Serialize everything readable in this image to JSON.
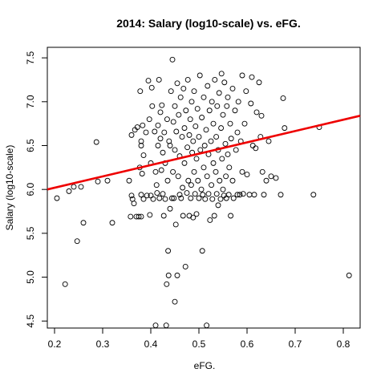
{
  "chart_data": {
    "type": "scatter",
    "title": "2014: Salary (log10-scale) vs. eFG.",
    "xlabel": "eFG.",
    "ylabel": "Salary (log10-scale)",
    "xlim": [
      0.185,
      0.835
    ],
    "ylim": [
      4.42,
      7.62
    ],
    "x_ticks": [
      "0.2",
      "0.3",
      "0.4",
      "0.5",
      "0.6",
      "0.7",
      "0.8"
    ],
    "y_ticks": [
      "4.5",
      "5.0",
      "5.5",
      "6.0",
      "6.5",
      "7.0",
      "7.5"
    ],
    "grid": false,
    "legend": "none",
    "colors": {
      "points": "#000000",
      "fit_line": "#ee0000"
    },
    "fit_line": {
      "x": [
        0.185,
        0.835
      ],
      "y": [
        6.0,
        6.84
      ]
    },
    "points": [
      [
        0.205,
        5.9
      ],
      [
        0.222,
        4.92
      ],
      [
        0.23,
        5.98
      ],
      [
        0.24,
        6.03
      ],
      [
        0.247,
        5.41
      ],
      [
        0.255,
        6.03
      ],
      [
        0.26,
        5.62
      ],
      [
        0.287,
        6.54
      ],
      [
        0.29,
        6.09
      ],
      [
        0.31,
        6.1
      ],
      [
        0.32,
        5.62
      ],
      [
        0.355,
        6.1
      ],
      [
        0.358,
        5.69
      ],
      [
        0.36,
        5.93
      ],
      [
        0.36,
        6.62
      ],
      [
        0.362,
        5.89
      ],
      [
        0.365,
        5.84
      ],
      [
        0.367,
        6.68
      ],
      [
        0.37,
        5.69
      ],
      [
        0.372,
        6.71
      ],
      [
        0.375,
        5.69
      ],
      [
        0.377,
        6.25
      ],
      [
        0.378,
        7.12
      ],
      [
        0.38,
        5.69
      ],
      [
        0.38,
        6.55
      ],
      [
        0.38,
        6.5
      ],
      [
        0.38,
        5.94
      ],
      [
        0.382,
        6.18
      ],
      [
        0.383,
        6.73
      ],
      [
        0.385,
        6.39
      ],
      [
        0.385,
        5.89
      ],
      [
        0.39,
        6.65
      ],
      [
        0.392,
        5.93
      ],
      [
        0.395,
        7.24
      ],
      [
        0.397,
        6.8
      ],
      [
        0.398,
        5.71
      ],
      [
        0.4,
        5.93
      ],
      [
        0.4,
        6.3
      ],
      [
        0.402,
        7.16
      ],
      [
        0.403,
        6.95
      ],
      [
        0.405,
        5.89
      ],
      [
        0.408,
        6.66
      ],
      [
        0.41,
        4.45
      ],
      [
        0.41,
        6.2
      ],
      [
        0.412,
        6.05
      ],
      [
        0.413,
        5.96
      ],
      [
        0.415,
        6.73
      ],
      [
        0.415,
        6.5
      ],
      [
        0.417,
        7.25
      ],
      [
        0.418,
        5.9
      ],
      [
        0.42,
        6.88
      ],
      [
        0.42,
        6.58
      ],
      [
        0.422,
        6.22
      ],
      [
        0.423,
        6.96
      ],
      [
        0.425,
        5.95
      ],
      [
        0.425,
        6.42
      ],
      [
        0.427,
        5.7
      ],
      [
        0.428,
        6.65
      ],
      [
        0.43,
        6.3
      ],
      [
        0.43,
        5.89
      ],
      [
        0.432,
        4.45
      ],
      [
        0.433,
        4.92
      ],
      [
        0.434,
        6.8
      ],
      [
        0.435,
        6.1
      ],
      [
        0.436,
        5.3
      ],
      [
        0.437,
        5.02
      ],
      [
        0.438,
        6.55
      ],
      [
        0.44,
        5.78
      ],
      [
        0.44,
        6.5
      ],
      [
        0.442,
        7.12
      ],
      [
        0.444,
        5.9
      ],
      [
        0.445,
        7.48
      ],
      [
        0.446,
        6.2
      ],
      [
        0.447,
        6.77
      ],
      [
        0.448,
        5.9
      ],
      [
        0.45,
        6.95
      ],
      [
        0.45,
        6.45
      ],
      [
        0.45,
        4.72
      ],
      [
        0.452,
        5.6
      ],
      [
        0.453,
        6.66
      ],
      [
        0.455,
        7.21
      ],
      [
        0.455,
        5.02
      ],
      [
        0.457,
        6.15
      ],
      [
        0.458,
        6.85
      ],
      [
        0.46,
        5.94
      ],
      [
        0.46,
        6.38
      ],
      [
        0.462,
        7.05
      ],
      [
        0.463,
        5.9
      ],
      [
        0.465,
        6.6
      ],
      [
        0.466,
        6.02
      ],
      [
        0.467,
        5.7
      ],
      [
        0.468,
        7.15
      ],
      [
        0.47,
        6.3
      ],
      [
        0.47,
        6.7
      ],
      [
        0.472,
        5.12
      ],
      [
        0.473,
        6.9
      ],
      [
        0.475,
        5.96
      ],
      [
        0.476,
        6.48
      ],
      [
        0.477,
        7.25
      ],
      [
        0.478,
        6.1
      ],
      [
        0.48,
        5.7
      ],
      [
        0.48,
        6.62
      ],
      [
        0.482,
        6.8
      ],
      [
        0.483,
        5.9
      ],
      [
        0.484,
        6.05
      ],
      [
        0.485,
        7.0
      ],
      [
        0.486,
        6.42
      ],
      [
        0.488,
        5.68
      ],
      [
        0.488,
        6.55
      ],
      [
        0.49,
        7.12
      ],
      [
        0.49,
        6.2
      ],
      [
        0.492,
        5.95
      ],
      [
        0.493,
        6.72
      ],
      [
        0.495,
        6.35
      ],
      [
        0.495,
        5.72
      ],
      [
        0.497,
        6.92
      ],
      [
        0.498,
        6.1
      ],
      [
        0.5,
        5.9
      ],
      [
        0.5,
        6.6
      ],
      [
        0.502,
        7.3
      ],
      [
        0.503,
        6.45
      ],
      [
        0.505,
        6.0
      ],
      [
        0.506,
        6.82
      ],
      [
        0.507,
        5.3
      ],
      [
        0.508,
        5.94
      ],
      [
        0.51,
        6.25
      ],
      [
        0.51,
        7.05
      ],
      [
        0.512,
        6.5
      ],
      [
        0.513,
        5.89
      ],
      [
        0.515,
        6.68
      ],
      [
        0.516,
        4.45
      ],
      [
        0.517,
        6.15
      ],
      [
        0.518,
        7.18
      ],
      [
        0.52,
        5.95
      ],
      [
        0.52,
        6.4
      ],
      [
        0.522,
        6.9
      ],
      [
        0.523,
        5.65
      ],
      [
        0.525,
        6.55
      ],
      [
        0.526,
        6.05
      ],
      [
        0.527,
        7.0
      ],
      [
        0.528,
        5.89
      ],
      [
        0.53,
        6.3
      ],
      [
        0.53,
        6.75
      ],
      [
        0.532,
        5.7
      ],
      [
        0.533,
        7.25
      ],
      [
        0.535,
        6.2
      ],
      [
        0.536,
        6.6
      ],
      [
        0.537,
        5.95
      ],
      [
        0.538,
        6.95
      ],
      [
        0.54,
        6.45
      ],
      [
        0.54,
        5.82
      ],
      [
        0.542,
        7.1
      ],
      [
        0.543,
        6.1
      ],
      [
        0.545,
        5.89
      ],
      [
        0.546,
        6.7
      ],
      [
        0.547,
        7.32
      ],
      [
        0.548,
        6.35
      ],
      [
        0.55,
        6.0
      ],
      [
        0.55,
        6.85
      ],
      [
        0.552,
        5.93
      ],
      [
        0.553,
        7.22
      ],
      [
        0.555,
        6.52
      ],
      [
        0.556,
        6.15
      ],
      [
        0.557,
        5.9
      ],
      [
        0.558,
        6.95
      ],
      [
        0.56,
        6.4
      ],
      [
        0.56,
        7.05
      ],
      [
        0.562,
        5.94
      ],
      [
        0.563,
        6.25
      ],
      [
        0.565,
        6.75
      ],
      [
        0.566,
        5.7
      ],
      [
        0.567,
        6.58
      ],
      [
        0.57,
        7.15
      ],
      [
        0.57,
        6.1
      ],
      [
        0.572,
        5.9
      ],
      [
        0.575,
        6.9
      ],
      [
        0.577,
        6.45
      ],
      [
        0.58,
        5.94
      ],
      [
        0.58,
        6.65
      ],
      [
        0.582,
        7.0
      ],
      [
        0.585,
        5.94
      ],
      [
        0.587,
        6.55
      ],
      [
        0.59,
        7.3
      ],
      [
        0.59,
        6.2
      ],
      [
        0.592,
        5.95
      ],
      [
        0.595,
        6.75
      ],
      [
        0.598,
        7.12
      ],
      [
        0.6,
        6.17
      ],
      [
        0.605,
        5.94
      ],
      [
        0.608,
        6.98
      ],
      [
        0.61,
        7.28
      ],
      [
        0.612,
        6.5
      ],
      [
        0.615,
        5.94
      ],
      [
        0.618,
        6.47
      ],
      [
        0.62,
        6.88
      ],
      [
        0.625,
        7.22
      ],
      [
        0.628,
        6.6
      ],
      [
        0.63,
        6.84
      ],
      [
        0.632,
        6.2
      ],
      [
        0.635,
        5.94
      ],
      [
        0.64,
        6.1
      ],
      [
        0.645,
        6.55
      ],
      [
        0.65,
        6.15
      ],
      [
        0.66,
        6.13
      ],
      [
        0.67,
        5.94
      ],
      [
        0.675,
        7.04
      ],
      [
        0.678,
        6.7
      ],
      [
        0.738,
        5.94
      ],
      [
        0.75,
        6.71
      ],
      [
        0.812,
        5.02
      ]
    ]
  }
}
